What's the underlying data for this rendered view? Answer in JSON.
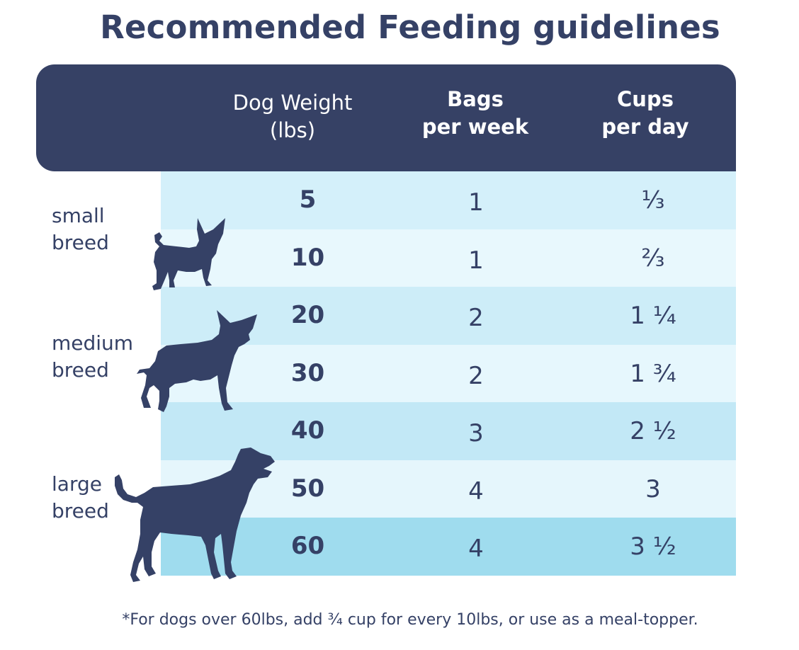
{
  "title": "Recommended Feeding guidelines",
  "header": {
    "weight_line1": "Dog Weight",
    "weight_line2": "(lbs)",
    "bags_line1": "Bags",
    "bags_line2": "per week",
    "cups_line1": "Cups",
    "cups_line2": "per day"
  },
  "breeds": {
    "small": [
      "small",
      "breed"
    ],
    "medium": [
      "medium",
      "breed"
    ],
    "large": [
      "large",
      "breed"
    ]
  },
  "rows": [
    {
      "weight": "5",
      "bags": "1",
      "cups": "⅓"
    },
    {
      "weight": "10",
      "bags": "1",
      "cups": "⅔"
    },
    {
      "weight": "20",
      "bags": "2",
      "cups": "1 ¼"
    },
    {
      "weight": "30",
      "bags": "2",
      "cups": "1 ¾"
    },
    {
      "weight": "40",
      "bags": "3",
      "cups": "2 ½"
    },
    {
      "weight": "50",
      "bags": "4",
      "cups": "3"
    },
    {
      "weight": "60",
      "bags": "4",
      "cups": "3 ½"
    }
  ],
  "row_colors": [
    "#d4f0fa",
    "#e8f8fd",
    "#cdedf8",
    "#e6f7fd",
    "#c2e8f6",
    "#e5f6fc",
    "#9fdcee"
  ],
  "footnote": "*For dogs over 60lbs, add ¾ cup for every 10lbs, or use as a meal-topper."
}
